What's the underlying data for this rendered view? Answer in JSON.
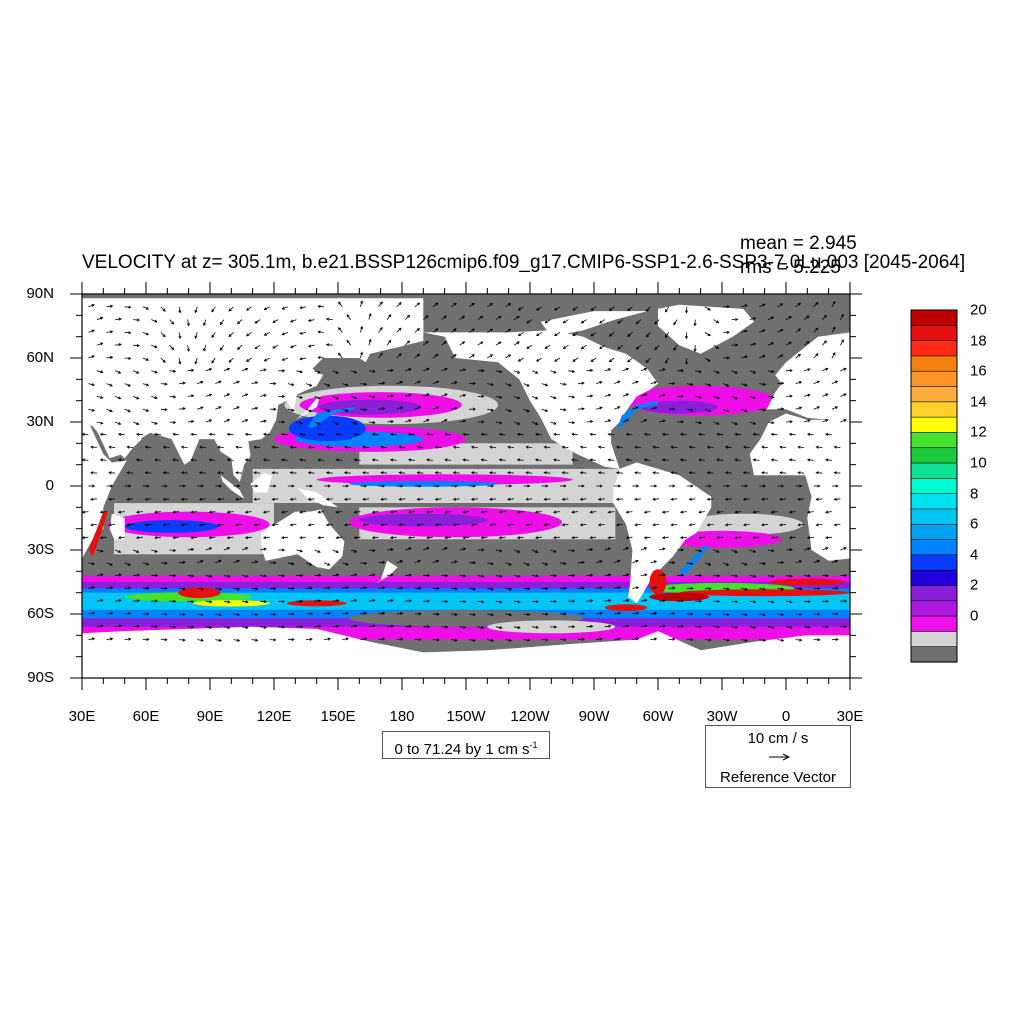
{
  "title": "VELOCITY at z= 305.1m, b.e21.BSSP126cmip6.f09_g17.CMIP6-SSP1-2.6-SSP3-7.0Lu.003 [2045-2064]",
  "stats": {
    "mean_label": "mean = 2.945",
    "rms_label": "rms = 5.225"
  },
  "map_data": {
    "type": "filled-contour-vector-map",
    "variable": "current speed at depth 305.1 m",
    "projection": "cylindrical equidistant",
    "lon_range": [
      30,
      390
    ],
    "lat_range": [
      -90,
      90
    ],
    "x_ticks": [
      "30E",
      "60E",
      "90E",
      "120E",
      "150E",
      "180",
      "150W",
      "120W",
      "90W",
      "60W",
      "30W",
      "0",
      "30E"
    ],
    "y_ticks": [
      "90N",
      "60N",
      "30N",
      "0",
      "30S",
      "60S",
      "90S"
    ],
    "contour_info": "0 to 71.24 by 1 cm s",
    "contour_info_sup": "-1",
    "ref_vector": {
      "magnitude_label": "10 cm / s",
      "caption": "Reference Vector"
    },
    "colorbar": {
      "labels": [
        "20",
        "18",
        "16",
        "14",
        "12",
        "10",
        "8",
        "6",
        "4",
        "2",
        "0"
      ],
      "colors_top_to_bottom": [
        "#c00000",
        "#e51010",
        "#ff2a16",
        "#f5800f",
        "#fb9528",
        "#fcae3c",
        "#fdd02c",
        "#ffff00",
        "#44e22b",
        "#1cc83c",
        "#10e096",
        "#00fad2",
        "#00e2f2",
        "#00c6f6",
        "#00a2f2",
        "#0083ff",
        "#0a3cff",
        "#2000dc",
        "#8a20d8",
        "#b016e2",
        "#ee0fe8",
        "#d4d4d4",
        "#707070"
      ]
    },
    "land_color": "#ffffff",
    "low_speed_color": "#707070"
  }
}
